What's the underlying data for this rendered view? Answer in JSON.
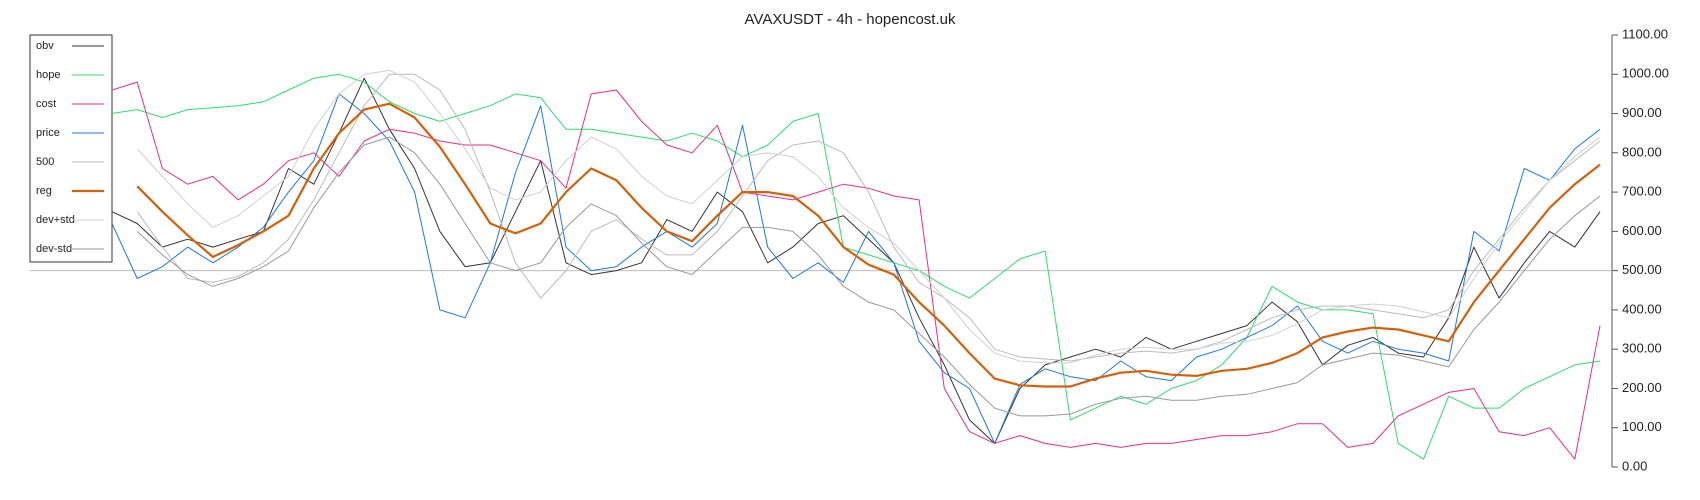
{
  "chart_data": {
    "type": "line",
    "title": "AVAXUSDT - 4h - hopencost.uk",
    "categories": [
      null,
      null,
      null,
      null,
      null,
      null,
      null,
      null,
      null,
      null,
      null,
      null,
      null,
      null,
      null,
      null,
      null,
      null,
      null,
      null,
      null,
      null,
      null,
      null,
      null,
      null,
      null,
      null,
      null,
      null,
      null,
      null,
      null,
      null,
      null,
      null,
      null,
      null,
      null,
      null,
      null,
      null,
      null,
      null,
      null,
      null,
      null,
      null,
      null,
      null,
      null,
      null,
      null,
      null,
      null,
      null,
      null,
      null,
      null,
      null
    ],
    "ylim": [
      0,
      1100
    ],
    "yticks": [
      {
        "value": 0,
        "label": "0.00"
      },
      {
        "value": 100,
        "label": "100.00"
      },
      {
        "value": 200,
        "label": "200.00"
      },
      {
        "value": 300,
        "label": "300.00"
      },
      {
        "value": 400,
        "label": "400.00"
      },
      {
        "value": 500,
        "label": "500.00"
      },
      {
        "value": 600,
        "label": "600.00"
      },
      {
        "value": 700,
        "label": "700.00"
      },
      {
        "value": 800,
        "label": "800.00"
      },
      {
        "value": 900,
        "label": "900.00"
      },
      {
        "value": 1000,
        "label": "1000.00"
      },
      {
        "value": 1100,
        "label": "1100.00"
      }
    ],
    "hline": 500,
    "legend": "upper left",
    "series": [
      {
        "name": "obv",
        "color": "#333333",
        "linewidth": 1,
        "values": [
          650,
          620,
          560,
          580,
          560,
          580,
          600,
          760,
          720,
          850,
          990,
          860,
          760,
          600,
          510,
          520,
          650,
          780,
          520,
          490,
          500,
          520,
          630,
          600,
          700,
          650,
          520,
          560,
          620,
          640,
          580,
          520,
          380,
          260,
          120,
          60,
          200,
          260,
          280,
          300,
          280,
          330,
          300,
          320,
          340,
          360,
          420,
          370,
          260,
          310,
          330,
          290,
          280,
          380,
          560,
          430,
          520,
          600,
          560,
          650
        ]
      },
      {
        "name": "hope",
        "color": "#2edc6f",
        "linewidth": 1,
        "values": [
          900,
          910,
          890,
          910,
          915,
          920,
          930,
          960,
          990,
          1000,
          980,
          930,
          900,
          880,
          900,
          920,
          950,
          940,
          860,
          860,
          850,
          840,
          830,
          850,
          830,
          790,
          820,
          880,
          900,
          560,
          540,
          520,
          500,
          460,
          430,
          480,
          530,
          550,
          120,
          150,
          180,
          160,
          200,
          220,
          260,
          330,
          460,
          420,
          400,
          400,
          390,
          60,
          20,
          180,
          150,
          150,
          200,
          230,
          260,
          270
        ]
      },
      {
        "name": "cost",
        "color": "#e62e8a",
        "linewidth": 1,
        "values": [
          960,
          980,
          760,
          720,
          740,
          680,
          720,
          780,
          800,
          740,
          830,
          860,
          850,
          830,
          820,
          820,
          800,
          780,
          710,
          950,
          960,
          880,
          820,
          800,
          870,
          700,
          690,
          680,
          700,
          720,
          710,
          690,
          680,
          200,
          90,
          60,
          80,
          60,
          50,
          60,
          50,
          60,
          60,
          70,
          80,
          80,
          90,
          110,
          110,
          50,
          60,
          130,
          160,
          190,
          200,
          90,
          80,
          100,
          20,
          360
        ]
      },
      {
        "name": "price",
        "color": "#1f7ad8",
        "linewidth": 1,
        "values": [
          620,
          480,
          510,
          560,
          520,
          560,
          610,
          700,
          780,
          950,
          900,
          830,
          700,
          400,
          380,
          520,
          750,
          920,
          560,
          500,
          510,
          560,
          600,
          560,
          620,
          870,
          560,
          480,
          520,
          470,
          600,
          520,
          320,
          240,
          200,
          60,
          210,
          250,
          230,
          220,
          270,
          230,
          220,
          280,
          300,
          330,
          360,
          410,
          320,
          290,
          320,
          300,
          290,
          270,
          600,
          550,
          760,
          730,
          810,
          860
        ]
      },
      {
        "name": "500",
        "color": "#bbbbbb",
        "linewidth": 1,
        "values": [
          null,
          650,
          560,
          480,
          470,
          485,
          520,
          580,
          680,
          800,
          920,
          1000,
          1000,
          960,
          860,
          700,
          520,
          430,
          500,
          600,
          630,
          580,
          540,
          540,
          600,
          690,
          780,
          820,
          830,
          800,
          700,
          560,
          470,
          430,
          380,
          300,
          280,
          275,
          270,
          280,
          290,
          295,
          290,
          300,
          320,
          350,
          380,
          400,
          410,
          410,
          400,
          390,
          380,
          400,
          500,
          580,
          660,
          730,
          780,
          830
        ]
      },
      {
        "name": "reg",
        "color": "#d4610a",
        "linewidth": 2.2,
        "values": [
          null,
          715,
          650,
          590,
          535,
          565,
          600,
          640,
          760,
          850,
          910,
          925,
          890,
          815,
          720,
          620,
          595,
          620,
          700,
          760,
          730,
          660,
          600,
          575,
          640,
          700,
          700,
          690,
          640,
          560,
          515,
          490,
          420,
          360,
          290,
          225,
          208,
          205,
          205,
          225,
          240,
          245,
          235,
          232,
          245,
          250,
          265,
          290,
          330,
          345,
          355,
          350,
          335,
          320,
          420,
          500,
          580,
          660,
          720,
          770
        ]
      },
      {
        "name": "dev+std",
        "color": "#d0d0d0",
        "linewidth": 1,
        "values": [
          null,
          810,
          740,
          670,
          610,
          640,
          690,
          740,
          860,
          950,
          1000,
          1010,
          980,
          900,
          810,
          710,
          680,
          700,
          780,
          840,
          810,
          740,
          690,
          670,
          730,
          790,
          800,
          790,
          740,
          660,
          610,
          570,
          500,
          430,
          350,
          290,
          270,
          265,
          265,
          285,
          300,
          305,
          300,
          300,
          315,
          320,
          335,
          365,
          400,
          410,
          415,
          410,
          395,
          380,
          480,
          570,
          650,
          730,
          790,
          840
        ]
      },
      {
        "name": "dev-std",
        "color": "#999999",
        "linewidth": 1,
        "values": [
          null,
          600,
          540,
          490,
          460,
          480,
          510,
          550,
          660,
          750,
          820,
          840,
          800,
          720,
          620,
          520,
          500,
          520,
          610,
          670,
          640,
          570,
          510,
          490,
          550,
          610,
          610,
          600,
          540,
          460,
          420,
          400,
          340,
          280,
          210,
          150,
          130,
          130,
          135,
          160,
          175,
          180,
          170,
          170,
          180,
          185,
          200,
          215,
          260,
          275,
          290,
          285,
          270,
          255,
          350,
          420,
          500,
          580,
          640,
          690
        ]
      }
    ]
  }
}
